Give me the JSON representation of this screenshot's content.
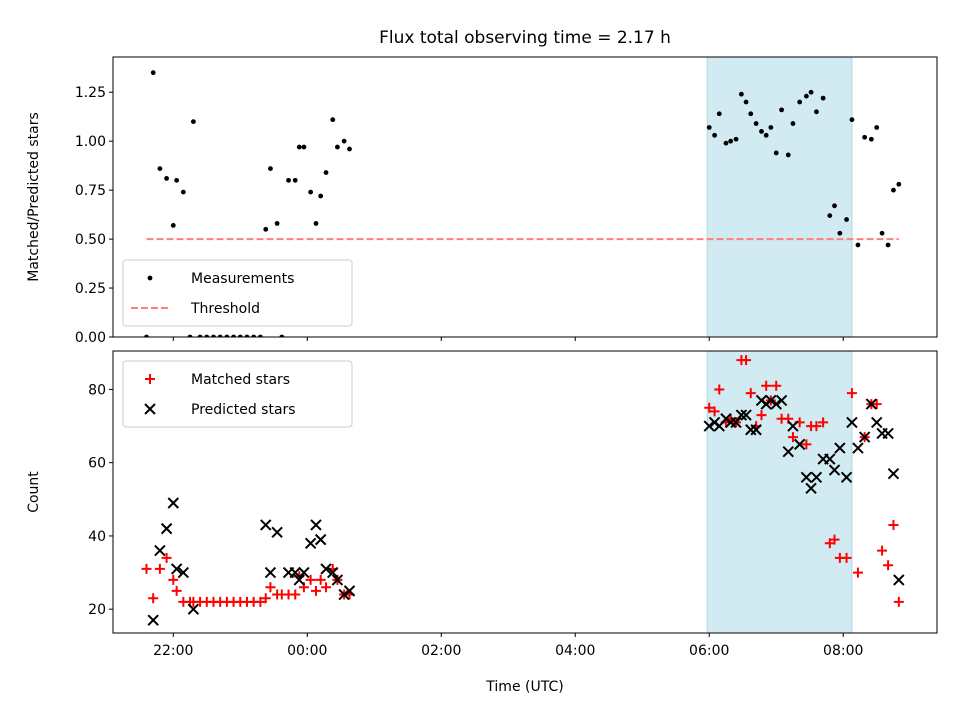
{
  "chart_data": [
    {
      "type": "scatter",
      "title": "Flux total observing time = 2.17 h",
      "ylabel": "Matched/Predicted stars",
      "xlabel": "",
      "ylim": [
        0,
        1.43
      ],
      "xlim_hours": [
        -2.9,
        9.4
      ],
      "yticks": [
        0.0,
        0.25,
        0.5,
        0.75,
        1.0,
        1.25
      ],
      "ytick_labels": [
        "0.00",
        "0.25",
        "0.50",
        "0.75",
        "1.00",
        "1.25"
      ],
      "xticks": [
        -2,
        0,
        2,
        4,
        6,
        8
      ],
      "xtick_labels": [
        "",
        "",
        "",
        "",
        "",
        ""
      ],
      "shaded_span": {
        "from": 5.97,
        "to": 8.13,
        "color": "#add8e6"
      },
      "legend_position": "lower-left",
      "series": [
        {
          "name": "Measurements",
          "marker": "dot",
          "color": "#000000",
          "points": [
            [
              -2.4,
              0.0
            ],
            [
              -2.3,
              1.35
            ],
            [
              -2.2,
              0.86
            ],
            [
              -2.1,
              0.81
            ],
            [
              -2.0,
              0.57
            ],
            [
              -1.95,
              0.8
            ],
            [
              -1.85,
              0.74
            ],
            [
              -1.75,
              0.0
            ],
            [
              -1.7,
              1.1
            ],
            [
              -1.6,
              0.0
            ],
            [
              -1.5,
              0.0
            ],
            [
              -1.4,
              0.0
            ],
            [
              -1.3,
              0.0
            ],
            [
              -1.2,
              0.0
            ],
            [
              -1.1,
              0.0
            ],
            [
              -1.0,
              0.0
            ],
            [
              -0.9,
              0.0
            ],
            [
              -0.8,
              0.0
            ],
            [
              -0.7,
              0.0
            ],
            [
              -0.62,
              0.55
            ],
            [
              -0.55,
              0.86
            ],
            [
              -0.45,
              0.58
            ],
            [
              -0.38,
              0.0
            ],
            [
              -0.28,
              0.8
            ],
            [
              -0.18,
              0.8
            ],
            [
              -0.12,
              0.97
            ],
            [
              -0.05,
              0.97
            ],
            [
              0.05,
              0.74
            ],
            [
              0.13,
              0.58
            ],
            [
              0.2,
              0.72
            ],
            [
              0.28,
              0.84
            ],
            [
              0.38,
              1.11
            ],
            [
              0.45,
              0.97
            ],
            [
              0.55,
              1.0
            ],
            [
              0.63,
              0.96
            ],
            [
              6.0,
              1.07
            ],
            [
              6.08,
              1.03
            ],
            [
              6.15,
              1.14
            ],
            [
              6.25,
              0.99
            ],
            [
              6.32,
              1.0
            ],
            [
              6.4,
              1.01
            ],
            [
              6.48,
              1.24
            ],
            [
              6.55,
              1.2
            ],
            [
              6.62,
              1.14
            ],
            [
              6.7,
              1.09
            ],
            [
              6.78,
              1.05
            ],
            [
              6.85,
              1.03
            ],
            [
              6.92,
              1.07
            ],
            [
              7.0,
              0.94
            ],
            [
              7.08,
              1.16
            ],
            [
              7.18,
              0.93
            ],
            [
              7.25,
              1.09
            ],
            [
              7.35,
              1.2
            ],
            [
              7.45,
              1.23
            ],
            [
              7.52,
              1.25
            ],
            [
              7.6,
              1.15
            ],
            [
              7.7,
              1.22
            ],
            [
              7.8,
              0.62
            ],
            [
              7.87,
              0.67
            ],
            [
              7.95,
              0.53
            ],
            [
              8.05,
              0.6
            ],
            [
              8.13,
              1.11
            ],
            [
              8.22,
              0.47
            ],
            [
              8.32,
              1.02
            ],
            [
              8.42,
              1.01
            ],
            [
              8.5,
              1.07
            ],
            [
              8.58,
              0.53
            ],
            [
              8.67,
              0.47
            ],
            [
              8.75,
              0.75
            ],
            [
              8.83,
              0.78
            ]
          ]
        },
        {
          "name": "Threshold",
          "marker": "dashed-line",
          "color": "#ff7f7f",
          "points": [
            [
              -2.4,
              0.5
            ],
            [
              8.83,
              0.5
            ]
          ]
        }
      ]
    },
    {
      "type": "scatter",
      "title": "",
      "ylabel": "Count",
      "xlabel": "Time (UTC)",
      "ylim": [
        13.5,
        90.5
      ],
      "xlim_hours": [
        -2.9,
        9.4
      ],
      "yticks": [
        20,
        40,
        60,
        80
      ],
      "ytick_labels": [
        "20",
        "40",
        "60",
        "80"
      ],
      "xticks": [
        -2,
        0,
        2,
        4,
        6,
        8
      ],
      "xtick_labels": [
        "22:00",
        "00:00",
        "02:00",
        "04:00",
        "06:00",
        "08:00"
      ],
      "shaded_span": {
        "from": 5.97,
        "to": 8.13,
        "color": "#add8e6"
      },
      "legend_position": "upper-left",
      "series": [
        {
          "name": "Matched stars",
          "marker": "plus",
          "color": "#ff0000",
          "points": [
            [
              -2.4,
              31
            ],
            [
              -2.3,
              23
            ],
            [
              -2.2,
              31
            ],
            [
              -2.1,
              34
            ],
            [
              -2.0,
              28
            ],
            [
              -1.95,
              25
            ],
            [
              -1.85,
              22
            ],
            [
              -1.75,
              22
            ],
            [
              -1.7,
              22
            ],
            [
              -1.6,
              22
            ],
            [
              -1.5,
              22
            ],
            [
              -1.4,
              22
            ],
            [
              -1.3,
              22
            ],
            [
              -1.2,
              22
            ],
            [
              -1.1,
              22
            ],
            [
              -1.0,
              22
            ],
            [
              -0.9,
              22
            ],
            [
              -0.8,
              22
            ],
            [
              -0.7,
              22
            ],
            [
              -0.62,
              23
            ],
            [
              -0.55,
              26
            ],
            [
              -0.45,
              24
            ],
            [
              -0.38,
              24
            ],
            [
              -0.28,
              24
            ],
            [
              -0.18,
              24
            ],
            [
              -0.12,
              29
            ],
            [
              -0.05,
              26
            ],
            [
              0.05,
              28
            ],
            [
              0.13,
              25
            ],
            [
              0.2,
              28
            ],
            [
              0.28,
              26
            ],
            [
              0.38,
              31
            ],
            [
              0.45,
              28
            ],
            [
              0.55,
              24
            ],
            [
              0.63,
              24
            ],
            [
              6.0,
              75
            ],
            [
              6.08,
              74
            ],
            [
              6.15,
              80
            ],
            [
              6.25,
              71
            ],
            [
              6.32,
              72
            ],
            [
              6.4,
              71
            ],
            [
              6.48,
              88
            ],
            [
              6.55,
              88
            ],
            [
              6.62,
              79
            ],
            [
              6.7,
              70
            ],
            [
              6.78,
              73
            ],
            [
              6.85,
              81
            ],
            [
              6.92,
              77
            ],
            [
              7.0,
              81
            ],
            [
              7.08,
              72
            ],
            [
              7.18,
              72
            ],
            [
              7.25,
              67
            ],
            [
              7.35,
              71
            ],
            [
              7.45,
              65
            ],
            [
              7.52,
              70
            ],
            [
              7.6,
              70
            ],
            [
              7.7,
              71
            ],
            [
              7.8,
              38
            ],
            [
              7.87,
              39
            ],
            [
              7.95,
              34
            ],
            [
              8.05,
              34
            ],
            [
              8.13,
              79
            ],
            [
              8.22,
              30
            ],
            [
              8.32,
              67
            ],
            [
              8.42,
              76
            ],
            [
              8.5,
              76
            ],
            [
              8.58,
              36
            ],
            [
              8.67,
              32
            ],
            [
              8.75,
              43
            ],
            [
              8.83,
              22
            ]
          ]
        },
        {
          "name": "Predicted stars",
          "marker": "x",
          "color": "#000000",
          "points": [
            [
              -2.3,
              17
            ],
            [
              -2.2,
              36
            ],
            [
              -2.1,
              42
            ],
            [
              -2.0,
              49
            ],
            [
              -1.95,
              31
            ],
            [
              -1.85,
              30
            ],
            [
              -1.7,
              20
            ],
            [
              -0.62,
              43
            ],
            [
              -0.55,
              30
            ],
            [
              -0.45,
              41
            ],
            [
              -0.28,
              30
            ],
            [
              -0.18,
              30
            ],
            [
              -0.12,
              28
            ],
            [
              -0.05,
              30
            ],
            [
              0.05,
              38
            ],
            [
              0.13,
              43
            ],
            [
              0.2,
              39
            ],
            [
              0.28,
              31
            ],
            [
              0.38,
              30
            ],
            [
              0.45,
              28
            ],
            [
              0.55,
              24
            ],
            [
              0.63,
              25
            ],
            [
              6.0,
              70
            ],
            [
              6.08,
              71
            ],
            [
              6.15,
              70
            ],
            [
              6.25,
              72
            ],
            [
              6.32,
              71
            ],
            [
              6.4,
              71
            ],
            [
              6.48,
              73
            ],
            [
              6.55,
              73
            ],
            [
              6.62,
              69
            ],
            [
              6.7,
              69
            ],
            [
              6.78,
              77
            ],
            [
              6.85,
              76
            ],
            [
              6.92,
              77
            ],
            [
              7.0,
              76
            ],
            [
              7.08,
              77
            ],
            [
              7.18,
              63
            ],
            [
              7.25,
              70
            ],
            [
              7.35,
              65
            ],
            [
              7.45,
              56
            ],
            [
              7.52,
              53
            ],
            [
              7.6,
              56
            ],
            [
              7.7,
              61
            ],
            [
              7.8,
              61
            ],
            [
              7.87,
              58
            ],
            [
              7.95,
              64
            ],
            [
              8.05,
              56
            ],
            [
              8.13,
              71
            ],
            [
              8.22,
              64
            ],
            [
              8.32,
              67
            ],
            [
              8.42,
              76
            ],
            [
              8.5,
              71
            ],
            [
              8.58,
              68
            ],
            [
              8.67,
              68
            ],
            [
              8.75,
              57
            ],
            [
              8.83,
              28
            ]
          ]
        }
      ]
    }
  ]
}
